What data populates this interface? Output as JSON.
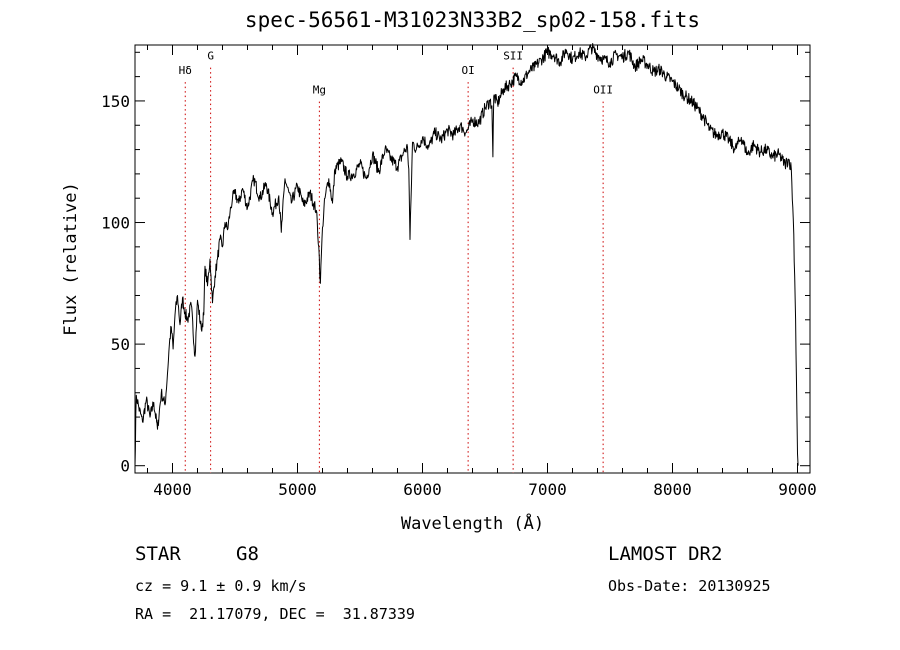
{
  "chart_data": {
    "type": "line",
    "title": "spec-56561-M31023N33B2_sp02-158.fits",
    "xlabel": "Wavelength (Å)",
    "ylabel": "Flux (relative)",
    "xlim": [
      3700,
      9100
    ],
    "ylim": [
      -3,
      173
    ],
    "xticks": [
      4000,
      5000,
      6000,
      7000,
      8000,
      9000
    ],
    "yticks": [
      0,
      50,
      100,
      150
    ],
    "x_minor_step": 200,
    "y_minor_step": 10,
    "line_color": "#000000",
    "marker_color": "#cc0000",
    "spectrum": {
      "x": [
        3700,
        3710,
        3730,
        3760,
        3790,
        3820,
        3850,
        3880,
        3910,
        3940,
        3960,
        3975,
        3990,
        4005,
        4020,
        4040,
        4060,
        4080,
        4100,
        4120,
        4150,
        4180,
        4200,
        4230,
        4250,
        4260,
        4280,
        4300,
        4320,
        4340,
        4360,
        4380,
        4400,
        4420,
        4440,
        4460,
        4480,
        4500,
        4530,
        4560,
        4600,
        4650,
        4700,
        4750,
        4800,
        4850,
        4870,
        4900,
        4950,
        5000,
        5050,
        5100,
        5150,
        5170,
        5183,
        5200,
        5220,
        5250,
        5280,
        5300,
        5350,
        5400,
        5450,
        5500,
        5550,
        5600,
        5650,
        5700,
        5750,
        5800,
        5850,
        5880,
        5890,
        5900,
        5920,
        5950,
        6000,
        6050,
        6100,
        6150,
        6200,
        6250,
        6300,
        6350,
        6400,
        6450,
        6500,
        6540,
        6555,
        6563,
        6570,
        6600,
        6650,
        6700,
        6750,
        6800,
        6850,
        6900,
        6950,
        7000,
        7050,
        7100,
        7150,
        7200,
        7250,
        7300,
        7350,
        7400,
        7450,
        7500,
        7550,
        7600,
        7650,
        7700,
        7750,
        7800,
        7850,
        7900,
        7950,
        8000,
        8050,
        8100,
        8150,
        8200,
        8250,
        8300,
        8350,
        8400,
        8450,
        8500,
        8550,
        8600,
        8650,
        8700,
        8750,
        8800,
        8850,
        8900,
        8930,
        8950,
        8970,
        8985,
        8995,
        9000,
        9005
      ],
      "y": [
        0,
        29,
        24,
        18,
        27,
        20,
        26,
        15,
        30,
        25,
        38,
        50,
        57,
        48,
        62,
        70,
        58,
        69,
        63,
        60,
        66,
        45,
        68,
        56,
        62,
        82,
        74,
        85,
        67,
        78,
        85,
        93,
        90,
        100,
        97,
        104,
        110,
        112,
        108,
        114,
        106,
        118,
        110,
        116,
        104,
        111,
        96,
        118,
        108,
        115,
        107,
        112,
        105,
        90,
        75,
        98,
        110,
        118,
        108,
        122,
        125,
        119,
        120,
        124,
        118,
        128,
        121,
        130,
        126,
        123,
        129,
        131,
        122,
        93,
        133,
        130,
        135,
        131,
        137,
        134,
        138,
        136,
        140,
        137,
        142,
        141,
        147,
        150,
        148,
        127,
        152,
        149,
        155,
        157,
        160,
        158,
        162,
        164,
        167,
        170,
        169,
        166,
        171,
        167,
        170,
        168,
        172,
        169,
        167,
        166,
        169,
        168,
        170,
        164,
        167,
        165,
        162,
        163,
        160,
        158,
        155,
        152,
        150,
        147,
        143,
        138,
        136,
        137,
        134,
        130,
        135,
        128,
        132,
        129,
        130,
        127,
        128,
        124,
        126,
        122,
        95,
        60,
        22,
        5,
        0
      ]
    },
    "lines": [
      {
        "label": "Hδ",
        "x": 4102,
        "label_y": 161
      },
      {
        "label": "G",
        "x": 4305,
        "label_y": 167
      },
      {
        "label": "Mg",
        "x": 5175,
        "label_y": 153
      },
      {
        "label": "OI",
        "x": 6365,
        "label_y": 161
      },
      {
        "label": "SII",
        "x": 6725,
        "label_y": 167
      },
      {
        "label": "OII",
        "x": 7445,
        "label_y": 153
      }
    ]
  },
  "info": {
    "object_class": "STAR",
    "subclass": "G8",
    "survey": "LAMOST DR2",
    "cz": "cz = 9.1 ± 0.9 km/s",
    "obs_date": "Obs-Date: 20130925",
    "coords": "RA =  21.17079, DEC =  31.87339"
  }
}
